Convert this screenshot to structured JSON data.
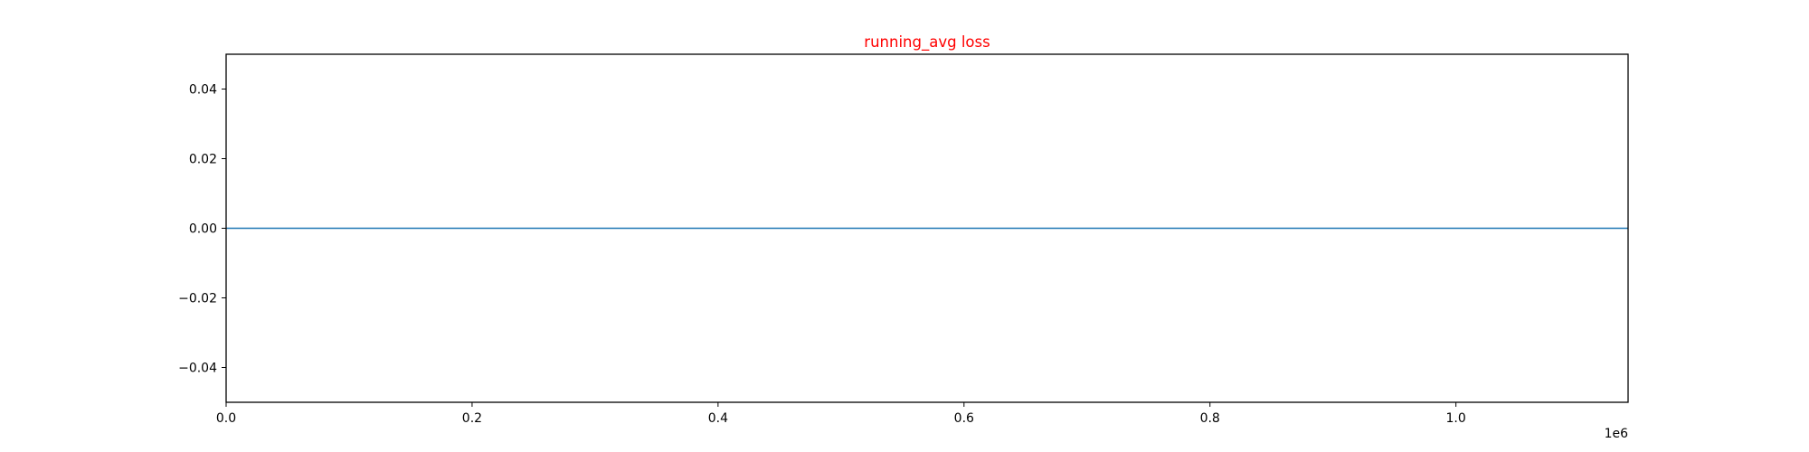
{
  "chart_data": {
    "type": "line",
    "title": "running_avg loss",
    "xlabel": "",
    "ylabel": "",
    "xlim": [
      0,
      1140000
    ],
    "ylim": [
      -0.05,
      0.05
    ],
    "x_ticks": [
      0,
      200000,
      400000,
      600000,
      800000,
      1000000
    ],
    "x_tick_labels": [
      "0.0",
      "0.2",
      "0.4",
      "0.6",
      "0.8",
      "1.0"
    ],
    "x_offset_label": "1e6",
    "y_ticks": [
      -0.04,
      -0.02,
      0.0,
      0.02,
      0.04
    ],
    "y_tick_labels": [
      "−0.04",
      "−0.02",
      "0.00",
      "0.02",
      "0.04"
    ],
    "grid": false,
    "series": [
      {
        "x": [
          0,
          1140000
        ],
        "y": [
          0,
          0
        ]
      }
    ]
  },
  "colors": {
    "title": "#ff0000",
    "line": "#1f77b4",
    "axis": "#000000"
  }
}
